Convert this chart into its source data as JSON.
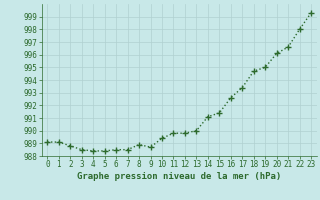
{
  "x": [
    0,
    1,
    2,
    3,
    4,
    5,
    6,
    7,
    8,
    9,
    10,
    11,
    12,
    13,
    14,
    15,
    16,
    17,
    18,
    19,
    20,
    21,
    22,
    23
  ],
  "y": [
    989.1,
    989.1,
    988.8,
    988.5,
    988.4,
    988.4,
    988.5,
    988.5,
    988.9,
    988.7,
    989.4,
    989.8,
    989.8,
    990.0,
    991.1,
    991.4,
    992.6,
    993.4,
    994.7,
    995.0,
    996.1,
    996.6,
    998.0,
    999.3
  ],
  "line_color": "#2d6a2d",
  "marker": "+",
  "marker_color": "#2d6a2d",
  "bg_color": "#c8e8e8",
  "grid_color": "#b0d0d0",
  "xlabel": "Graphe pression niveau de la mer (hPa)",
  "xlabel_color": "#2d6a2d",
  "tick_color": "#2d6a2d",
  "ylim": [
    988,
    1000
  ],
  "xlim": [
    -0.5,
    23.5
  ],
  "yticks": [
    988,
    989,
    990,
    991,
    992,
    993,
    994,
    995,
    996,
    997,
    998,
    999
  ],
  "xticks": [
    0,
    1,
    2,
    3,
    4,
    5,
    6,
    7,
    8,
    9,
    10,
    11,
    12,
    13,
    14,
    15,
    16,
    17,
    18,
    19,
    20,
    21,
    22,
    23
  ],
  "linewidth": 1.0,
  "markersize": 4,
  "tick_fontsize": 5.5,
  "xlabel_fontsize": 6.5
}
